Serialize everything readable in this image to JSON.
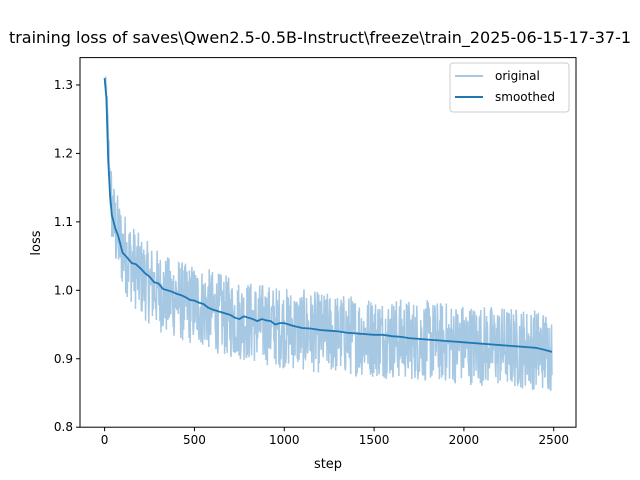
{
  "chart_data": {
    "type": "line",
    "title": "training loss of saves\\Qwen2.5-0.5B-Instruct\\freeze\\train_2025-06-15-17-37-1",
    "xlabel": "step",
    "ylabel": "loss",
    "xlim": [
      -137,
      2624
    ],
    "ylim": [
      0.8,
      1.34
    ],
    "x_ticks": [
      0,
      500,
      1000,
      1500,
      2000,
      2500
    ],
    "y_ticks": [
      0.8,
      0.9,
      1.0,
      1.1,
      1.2,
      1.3
    ],
    "x_tick_labels": [
      "0",
      "500",
      "1000",
      "1500",
      "2000",
      "2500"
    ],
    "y_tick_labels": [
      "0.8",
      "0.9",
      "1.0",
      "1.1",
      "1.2",
      "1.3"
    ],
    "grid": false,
    "legend": "upper right",
    "colors": {
      "original": "#a6c8e3",
      "smoothed": "#1f77b4"
    },
    "series": [
      {
        "name": "original",
        "x": [
          0,
          10,
          20,
          30,
          40,
          50,
          60,
          75,
          100,
          125,
          150,
          175,
          200,
          250,
          300,
          350,
          400,
          450,
          500,
          550,
          600,
          650,
          700,
          750,
          800,
          850,
          900,
          950,
          1000,
          1050,
          1100,
          1150,
          1200,
          1250,
          1300,
          1350,
          1400,
          1450,
          1500,
          1550,
          1600,
          1650,
          1700,
          1750,
          1800,
          1850,
          1900,
          1950,
          2000,
          2050,
          2100,
          2150,
          2200,
          2250,
          2300,
          2350,
          2400,
          2450,
          2490
        ],
        "values": [
          1.31,
          1.29,
          1.22,
          1.16,
          1.12,
          1.1,
          1.09,
          1.08,
          1.06,
          1.05,
          1.04,
          1.03,
          1.02,
          1.01,
          1.0,
          0.99,
          0.99,
          0.98,
          0.98,
          0.975,
          0.97,
          0.965,
          0.96,
          0.958,
          0.955,
          0.952,
          0.95,
          0.948,
          0.945,
          0.943,
          0.942,
          0.94,
          0.938,
          0.937,
          0.936,
          0.935,
          0.934,
          0.933,
          0.932,
          0.931,
          0.93,
          0.929,
          0.928,
          0.927,
          0.926,
          0.925,
          0.924,
          0.923,
          0.922,
          0.921,
          0.92,
          0.919,
          0.918,
          0.917,
          0.916,
          0.915,
          0.914,
          0.913,
          0.91
        ],
        "noise": [
          0.0,
          0.02,
          0.03,
          0.04,
          0.045,
          0.05,
          0.05,
          0.05,
          0.05,
          0.05,
          0.05,
          0.05,
          0.05,
          0.05,
          0.05,
          0.05,
          0.05,
          0.05,
          0.05,
          0.05,
          0.05,
          0.05,
          0.05,
          0.05,
          0.05,
          0.05,
          0.05,
          0.05,
          0.05,
          0.05,
          0.05,
          0.05,
          0.05,
          0.05,
          0.05,
          0.05,
          0.05,
          0.05,
          0.05,
          0.05,
          0.05,
          0.05,
          0.05,
          0.05,
          0.05,
          0.05,
          0.05,
          0.05,
          0.05,
          0.05,
          0.05,
          0.05,
          0.05,
          0.05,
          0.05,
          0.05,
          0.05,
          0.05,
          0.05
        ]
      },
      {
        "name": "smoothed",
        "x": [
          0,
          10,
          20,
          30,
          40,
          50,
          60,
          75,
          100,
          125,
          150,
          175,
          200,
          225,
          250,
          275,
          300,
          325,
          350,
          375,
          400,
          425,
          450,
          475,
          500,
          525,
          550,
          575,
          600,
          625,
          650,
          675,
          700,
          725,
          750,
          775,
          800,
          825,
          850,
          875,
          900,
          925,
          950,
          975,
          1000,
          1050,
          1100,
          1150,
          1200,
          1250,
          1300,
          1350,
          1400,
          1450,
          1500,
          1550,
          1600,
          1650,
          1700,
          1750,
          1800,
          1850,
          1900,
          1950,
          2000,
          2050,
          2100,
          2150,
          2200,
          2250,
          2300,
          2350,
          2400,
          2450,
          2490
        ],
        "values": [
          1.31,
          1.28,
          1.19,
          1.14,
          1.11,
          1.1,
          1.09,
          1.08,
          1.055,
          1.048,
          1.04,
          1.038,
          1.032,
          1.025,
          1.02,
          1.012,
          1.01,
          1.002,
          1.0,
          0.998,
          0.995,
          0.993,
          0.99,
          0.986,
          0.985,
          0.982,
          0.98,
          0.975,
          0.972,
          0.97,
          0.968,
          0.966,
          0.964,
          0.96,
          0.958,
          0.962,
          0.96,
          0.958,
          0.955,
          0.958,
          0.956,
          0.955,
          0.95,
          0.952,
          0.952,
          0.948,
          0.945,
          0.944,
          0.942,
          0.941,
          0.94,
          0.938,
          0.937,
          0.936,
          0.935,
          0.935,
          0.933,
          0.932,
          0.93,
          0.929,
          0.928,
          0.927,
          0.926,
          0.925,
          0.924,
          0.923,
          0.922,
          0.921,
          0.92,
          0.919,
          0.918,
          0.917,
          0.916,
          0.913,
          0.91
        ]
      }
    ]
  }
}
